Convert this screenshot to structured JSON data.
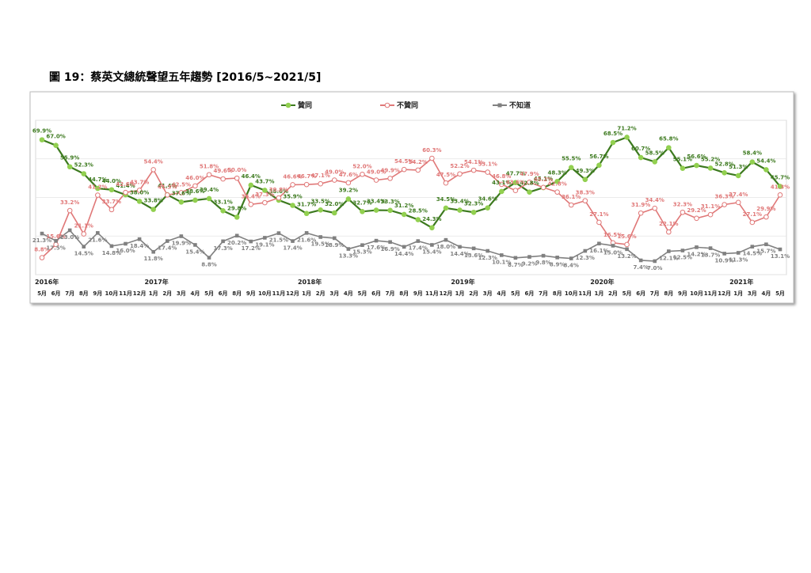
{
  "chart_data": {
    "type": "line",
    "title": "圖 19：蔡英文總統聲望五年趨勢  [2016/5~2021/5]",
    "categories": [
      "5月",
      "6月",
      "7月",
      "8月",
      "9月",
      "10月",
      "11月",
      "12月",
      "1月",
      "2月",
      "3月",
      "4月",
      "5月",
      "6月",
      "8月",
      "9月",
      "10月",
      "11月",
      "12月",
      "1月",
      "2月",
      "3月",
      "4月",
      "5月",
      "6月",
      "7月",
      "8月",
      "9月",
      "11月",
      "12月",
      "1月",
      "2月",
      "3月",
      "4月",
      "5月",
      "6月",
      "7月",
      "8月",
      "10月",
      "11月",
      "1月",
      "2月",
      "5月",
      "6月",
      "7月",
      "8月",
      "9月",
      "10月",
      "11月",
      "12月",
      "1月",
      "3月",
      "4月",
      "5月"
    ],
    "years": [
      "2016年",
      "2017年",
      "2018年",
      "2019年",
      "2020年",
      "2021年"
    ],
    "ylim": [
      0,
      80
    ],
    "yticks": [
      0,
      20,
      40,
      60,
      80
    ],
    "grid": true,
    "legend": "top",
    "series": [
      {
        "name": "贊同",
        "color": "#3d7a1f",
        "marker_color": "#92d050",
        "values": [
          69.9,
          67.0,
          55.9,
          52.3,
          44.7,
          44.0,
          41.4,
          38.0,
          33.8,
          41.4,
          37.6,
          38.6,
          39.4,
          33.1,
          29.8,
          46.4,
          43.7,
          38.6,
          35.9,
          31.7,
          33.5,
          32.0,
          39.2,
          32.7,
          33.4,
          33.3,
          31.2,
          28.5,
          24.3,
          34.5,
          33.4,
          32.3,
          34.6,
          43.1,
          47.7,
          42.8,
          45.1,
          48.3,
          55.5,
          49.3,
          56.7,
          68.5,
          71.2,
          60.7,
          58.5,
          65.8,
          55.1,
          56.6,
          55.2,
          52.8,
          51.3,
          58.4,
          54.4,
          45.7
        ],
        "value_labels": [
          "69.9%",
          "67.0%",
          "55.9%",
          "52.3%",
          "44.7%",
          "44.0%",
          "41.4%",
          "38.0%",
          "33.8%",
          "41.4%",
          "37.6%",
          "38.6%",
          "39.4%",
          "33.1%",
          "29.8%",
          "46.4%",
          "43.7%",
          "38.6%",
          "35.9%",
          "31.7%",
          "33.5%",
          "32.0%",
          "39.2%",
          "32.7%",
          "33.4%",
          "33.3%",
          "31.2%",
          "28.5%",
          "24.3%",
          "34.5%",
          "33.4%",
          "32.3%",
          "34.6%",
          "43.1%",
          "47.7%",
          "42.8%",
          "45.1%",
          "48.3%",
          "55.5%",
          "49.3%",
          "56.7%",
          "68.5%",
          "71.2%",
          "60.7%",
          "58.5%",
          "65.8%",
          "55.1%",
          "56.6%",
          "55.2%",
          "52.8%",
          "51.3%",
          "58.4%",
          "54.4%",
          "45.7%"
        ]
      },
      {
        "name": "不贊同",
        "color": "#e07878",
        "marker_color": "#ffffff",
        "values": [
          8.8,
          15.6,
          33.2,
          21.1,
          41.2,
          33.7,
          42.6,
          43.7,
          54.4,
          41.3,
          42.5,
          46.0,
          51.8,
          49.6,
          50.0,
          36.4,
          37.3,
          39.8,
          46.6,
          46.7,
          47.1,
          49.0,
          47.6,
          52.0,
          49.0,
          49.9,
          54.5,
          54.2,
          60.3,
          47.5,
          52.2,
          54.1,
          53.1,
          46.8,
          43.6,
          47.9,
          45.2,
          42.8,
          36.1,
          38.3,
          27.1,
          16.5,
          15.6,
          31.9,
          34.4,
          22.1,
          32.3,
          29.2,
          31.1,
          36.3,
          37.4,
          27.1,
          29.9,
          41.3
        ],
        "value_labels": [
          "8.8%",
          "15.6%",
          "33.2%",
          "21.1%",
          "41.2%",
          "33.7%",
          "42.6%",
          "43.7%",
          "54.4%",
          "41.3%",
          "42.5%",
          "46.0%",
          "51.8%",
          "49.6%",
          "50.0%",
          "36.4%",
          "37.3%",
          "39.8%",
          "46.6%",
          "46.7%",
          "47.1%",
          "49.0%",
          "47.6%",
          "52.0%",
          "49.0%",
          "49.9%",
          "54.5%",
          "54.2%",
          "60.3%",
          "47.5%",
          "52.2%",
          "54.1%",
          "53.1%",
          "46.8%",
          "43.6%",
          "47.9%",
          "45.2%",
          "42.8%",
          "36.1%",
          "38.3%",
          "27.1%",
          "16.5%",
          "15.6%",
          "31.9%",
          "34.4%",
          "22.1%",
          "32.3%",
          "29.2%",
          "31.1%",
          "36.3%",
          "37.4%",
          "27.1%",
          "29.9%",
          "41.3%"
        ]
      },
      {
        "name": "不知道",
        "color": "#808080",
        "marker_color": "#808080",
        "values": [
          21.3,
          17.5,
          23.0,
          14.5,
          21.6,
          14.8,
          16.0,
          18.4,
          11.8,
          17.4,
          19.9,
          15.4,
          8.8,
          17.3,
          20.2,
          17.2,
          19.1,
          21.5,
          17.4,
          21.6,
          19.5,
          18.9,
          13.3,
          15.3,
          17.6,
          16.9,
          14.4,
          17.4,
          15.4,
          18.0,
          14.4,
          13.6,
          12.3,
          10.1,
          8.7,
          9.2,
          9.8,
          8.9,
          8.4,
          12.3,
          16.1,
          15.0,
          13.2,
          7.4,
          7.0,
          12.1,
          12.5,
          14.2,
          13.7,
          10.9,
          11.3,
          14.5,
          15.7,
          13.1
        ],
        "value_labels": [
          "21.3%",
          "17.5%",
          "23.0%",
          "14.5%",
          "21.6%",
          "14.8%",
          "16.0%",
          "18.4%",
          "11.8%",
          "17.4%",
          "19.9%",
          "15.4%",
          "8.8%",
          "17.3%",
          "20.2%",
          "17.2%",
          "19.1%",
          "21.5%",
          "17.4%",
          "21.6%",
          "19.5%",
          "18.9%",
          "13.3%",
          "15.3%",
          "17.6%",
          "16.9%",
          "14.4%",
          "17.4%",
          "15.4%",
          "18.0%",
          "14.4%",
          "13.6%",
          "12.3%",
          "10.1%",
          "8.7%",
          "9.2%",
          "9.8%",
          "8.9%",
          "8.4%",
          "12.3%",
          "16.1%",
          "15.0%",
          "13.2%",
          "7.4%",
          "7.0%",
          "12.1%",
          "12.5%",
          "14.2%",
          "13.7%",
          "10.9%",
          "11.3%",
          "14.5%",
          "15.7%",
          "13.1%"
        ]
      }
    ]
  }
}
